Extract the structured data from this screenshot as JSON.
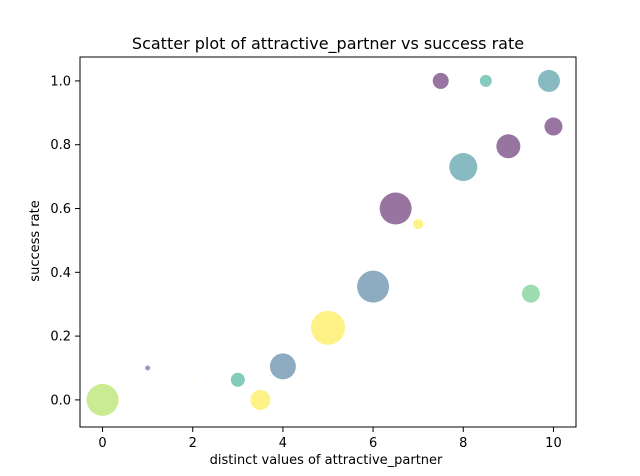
{
  "chart_data": {
    "type": "scatter",
    "title": "Scatter plot of attractive_partner vs success rate",
    "xlabel": "distinct values of attractive_partner",
    "ylabel": "success rate",
    "xlim": [
      -0.5,
      10.5
    ],
    "ylim": [
      -0.085,
      1.075
    ],
    "xticks": [
      0,
      2,
      4,
      6,
      8,
      10
    ],
    "xtick_labels": [
      "0",
      "2",
      "4",
      "6",
      "8",
      "10"
    ],
    "yticks": [
      0.0,
      0.2,
      0.4,
      0.6,
      0.8,
      1.0
    ],
    "ytick_labels": [
      "0.0",
      "0.2",
      "0.4",
      "0.6",
      "0.8",
      "1.0"
    ],
    "grid": false,
    "legend": "none",
    "point_alpha": 0.55,
    "points": [
      {
        "x": 0.0,
        "y": 0.0,
        "size": 16,
        "color": "#a0da39"
      },
      {
        "x": 1.0,
        "y": 0.1,
        "size": 2.5,
        "color": "#3e4a89"
      },
      {
        "x": 2.0,
        "y": 0.06,
        "size": 0.6,
        "color": "#fde725"
      },
      {
        "x": 3.0,
        "y": 0.063,
        "size": 7,
        "color": "#1fa187"
      },
      {
        "x": 3.5,
        "y": 0.0,
        "size": 10,
        "color": "#fde725"
      },
      {
        "x": 4.0,
        "y": 0.105,
        "size": 13,
        "color": "#31688e"
      },
      {
        "x": 5.0,
        "y": 0.226,
        "size": 17,
        "color": "#fde725"
      },
      {
        "x": 6.0,
        "y": 0.355,
        "size": 16,
        "color": "#31688e"
      },
      {
        "x": 6.5,
        "y": 0.6,
        "size": 16,
        "color": "#440154"
      },
      {
        "x": 7.0,
        "y": 0.551,
        "size": 5,
        "color": "#fde725"
      },
      {
        "x": 7.5,
        "y": 1.0,
        "size": 8,
        "color": "#440154"
      },
      {
        "x": 8.0,
        "y": 0.73,
        "size": 14,
        "color": "#26828e"
      },
      {
        "x": 8.5,
        "y": 1.0,
        "size": 6,
        "color": "#1fa187"
      },
      {
        "x": 9.0,
        "y": 0.795,
        "size": 12,
        "color": "#440154"
      },
      {
        "x": 9.5,
        "y": 0.333,
        "size": 9,
        "color": "#4ac16d"
      },
      {
        "x": 9.9,
        "y": 1.0,
        "size": 11,
        "color": "#26828e"
      },
      {
        "x": 10.0,
        "y": 0.857,
        "size": 9,
        "color": "#440154"
      }
    ]
  }
}
